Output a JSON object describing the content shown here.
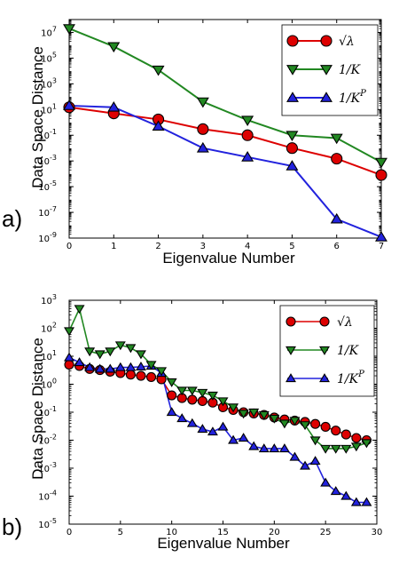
{
  "chart_data": [
    {
      "type": "line",
      "panel_label": "a)",
      "xlabel": "Eigenvalue Number",
      "ylabel": "Data Space Distance",
      "yscale": "log",
      "xlim": [
        0,
        7
      ],
      "ylim_exp": [
        -9,
        8
      ],
      "x_ticks": [
        "0",
        "1",
        "2",
        "3",
        "4",
        "5",
        "6",
        "7"
      ],
      "y_ticks": [
        {
          "exp": -9,
          "base": "10",
          "sup": "-9"
        },
        {
          "exp": -7,
          "base": "10",
          "sup": "-7"
        },
        {
          "exp": -5,
          "base": "10",
          "sup": "-5"
        },
        {
          "exp": -3,
          "base": "10",
          "sup": "-3"
        },
        {
          "exp": -1,
          "base": "10",
          "sup": "-1"
        },
        {
          "exp": 1,
          "base": "10",
          "sup": "1"
        },
        {
          "exp": 3,
          "base": "10",
          "sup": "3"
        },
        {
          "exp": 5,
          "base": "10",
          "sup": "5"
        },
        {
          "exp": 7,
          "base": "10",
          "sup": "7"
        }
      ],
      "legend_position": "top-right",
      "x": [
        0,
        1,
        2,
        3,
        4,
        5,
        6,
        7
      ],
      "series": [
        {
          "name": "√λ",
          "color": "#dd0000",
          "marker": "circle",
          "values": [
            15,
            5,
            1.7,
            0.3,
            0.1,
            0.01,
            0.0015,
            8e-05
          ]
        },
        {
          "name": "1/K",
          "color": "#228822",
          "marker": "triangle-down",
          "values": [
            20000000,
            800000,
            12000,
            40,
            1.5,
            0.1,
            0.06,
            0.0008
          ]
        },
        {
          "name": "1/K^P",
          "color": "#2222dd",
          "marker": "triangle-up",
          "values": [
            20,
            15,
            0.5,
            0.01,
            0.002,
            0.0004,
            3e-08,
            1.2e-09
          ]
        }
      ]
    },
    {
      "type": "line",
      "panel_label": "b)",
      "xlabel": "Eigenvalue Number",
      "ylabel": "Data Space Distance",
      "yscale": "log",
      "xlim": [
        0,
        30
      ],
      "ylim_exp": [
        -5,
        3
      ],
      "x_ticks": [
        "0",
        "5",
        "10",
        "15",
        "20",
        "25",
        "30"
      ],
      "y_ticks": [
        {
          "exp": -5,
          "base": "10",
          "sup": "-5"
        },
        {
          "exp": -4,
          "base": "10",
          "sup": "-4"
        },
        {
          "exp": -3,
          "base": "10",
          "sup": "-3"
        },
        {
          "exp": -2,
          "base": "10",
          "sup": "-2"
        },
        {
          "exp": -1,
          "base": "10",
          "sup": "-1"
        },
        {
          "exp": 0,
          "base": "10",
          "sup": "0"
        },
        {
          "exp": 1,
          "base": "10",
          "sup": "1"
        },
        {
          "exp": 2,
          "base": "10",
          "sup": "2"
        },
        {
          "exp": 3,
          "base": "10",
          "sup": "3"
        }
      ],
      "legend_position": "top-right",
      "x": [
        0,
        1,
        2,
        3,
        4,
        5,
        6,
        7,
        8,
        9,
        10,
        11,
        12,
        13,
        14,
        15,
        16,
        17,
        18,
        19,
        20,
        21,
        22,
        23,
        24,
        25,
        26,
        27,
        28,
        29
      ],
      "series": [
        {
          "name": "√λ",
          "color": "#dd0000",
          "marker": "circle",
          "values": [
            5,
            4.5,
            3.5,
            3.2,
            2.8,
            2.5,
            2.2,
            2.0,
            1.8,
            1.5,
            0.4,
            0.32,
            0.28,
            0.25,
            0.22,
            0.15,
            0.12,
            0.1,
            0.09,
            0.08,
            0.065,
            0.055,
            0.05,
            0.045,
            0.038,
            0.03,
            0.022,
            0.016,
            0.012,
            0.01
          ]
        },
        {
          "name": "1/K",
          "color": "#228822",
          "marker": "triangle-down",
          "values": [
            80,
            500,
            15,
            12,
            15,
            25,
            20,
            12,
            5,
            3,
            1.2,
            0.6,
            0.6,
            0.5,
            0.4,
            0.25,
            0.15,
            0.09,
            0.1,
            0.08,
            0.06,
            0.04,
            0.05,
            0.035,
            0.01,
            0.005,
            0.005,
            0.005,
            0.006,
            0.008
          ]
        },
        {
          "name": "1/K^P",
          "color": "#2222dd",
          "marker": "triangle-up",
          "values": [
            9,
            6,
            4,
            3.5,
            3.5,
            4,
            4,
            4.2,
            4.5,
            2.5,
            0.1,
            0.06,
            0.04,
            0.025,
            0.02,
            0.03,
            0.01,
            0.012,
            0.006,
            0.005,
            0.005,
            0.005,
            0.0025,
            0.0012,
            0.0018,
            0.0003,
            0.00015,
            0.0001,
            6e-05,
            6e-05
          ]
        }
      ]
    }
  ]
}
